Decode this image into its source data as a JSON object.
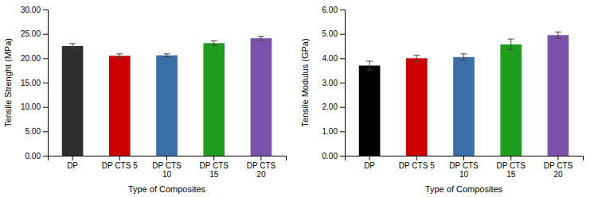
{
  "chart_data": [
    {
      "type": "bar",
      "categories": [
        "DP",
        "DP CTS 5",
        "DP CTS\n10",
        "DP CTS\n15",
        "DP CTS\n20"
      ],
      "values": [
        22.5,
        20.5,
        20.6,
        23.1,
        24.1
      ],
      "errors": [
        0.5,
        0.4,
        0.3,
        0.45,
        0.4
      ],
      "colors": [
        "#2e2e2e",
        "#cc0000",
        "#3a6ea8",
        "#1e9e1e",
        "#7b52ab"
      ],
      "xlabel": "Type of Composites",
      "ylabel": "Tensile Strenght (MPa)",
      "ylim": [
        0,
        30
      ],
      "yticks": [
        {
          "value": 0,
          "label": "0.00"
        },
        {
          "value": 5,
          "label": "5.00"
        },
        {
          "value": 10,
          "label": "10.00"
        },
        {
          "value": 15,
          "label": "15.00"
        },
        {
          "value": 20,
          "label": "20.00"
        },
        {
          "value": 25,
          "label": "25.00"
        },
        {
          "value": 30,
          "label": "30.00"
        }
      ],
      "grid": false
    },
    {
      "type": "bar",
      "categories": [
        "DP",
        "DP CTS 5",
        "DP CTS\n10",
        "DP CTS\n15",
        "DP CTS\n20"
      ],
      "values": [
        3.7,
        4.0,
        4.05,
        4.57,
        4.95
      ],
      "errors": [
        0.18,
        0.13,
        0.13,
        0.22,
        0.13
      ],
      "colors": [
        "#000000",
        "#cc0000",
        "#3a6ea8",
        "#1e9e1e",
        "#7b52ab"
      ],
      "xlabel": "Type of Composites",
      "ylabel": "Tensile Modulus (GPa)",
      "ylim": [
        0,
        6.0
      ],
      "yticks": [
        {
          "value": 0,
          "label": "0.00"
        },
        {
          "value": 1,
          "label": "1.00"
        },
        {
          "value": 2,
          "label": "2.00"
        },
        {
          "value": 3,
          "label": "3.00"
        },
        {
          "value": 4,
          "label": "4.00"
        },
        {
          "value": 5,
          "label": "5.00"
        },
        {
          "value": 6,
          "label": "6.00"
        }
      ],
      "grid": false
    }
  ]
}
